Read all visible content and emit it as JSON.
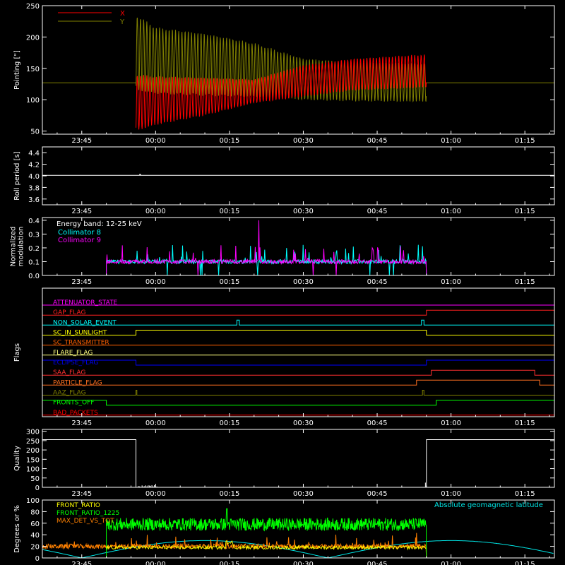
{
  "colors": {
    "background": "#000000",
    "axes": "#ffffff",
    "pointing_x": "#ff0000",
    "pointing_y": "#808000",
    "collimator_8": "#00ffff",
    "collimator_9": "#ff00ff",
    "front_ratio": "#ffff00",
    "front_ratio_1225": "#00ff00",
    "max_det_vs_tot": "#ff8000",
    "geomag": "#00e5e5"
  },
  "time_axis": {
    "tick_labels": [
      "23:45",
      "00:00",
      "00:15",
      "00:30",
      "00:45",
      "01:00",
      "01:15"
    ],
    "tick_minutes": [
      -15,
      0,
      15,
      30,
      45,
      60,
      75
    ],
    "range_minutes": [
      -23,
      81
    ]
  },
  "chart_data": [
    {
      "id": "pointing",
      "type": "line",
      "ylabel": "Pointing [\"]",
      "yticks": [
        50,
        100,
        150,
        200,
        250
      ],
      "ylim": [
        45,
        250
      ],
      "legend": [
        {
          "label": "X",
          "color": "#ff0000"
        },
        {
          "label": "Y",
          "color": "#808000"
        }
      ],
      "legend_placement": "top-left",
      "series": [
        {
          "name": "X",
          "baseline": 127,
          "data_start_min": -4,
          "data_end_min": 55,
          "envelope_time_min": [
            -4,
            0,
            10,
            20,
            30,
            40,
            50,
            55
          ],
          "envelope_low": [
            50,
            60,
            75,
            95,
            105,
            115,
            118,
            120
          ],
          "envelope_high": [
            140,
            137,
            135,
            132,
            155,
            165,
            170,
            172
          ]
        },
        {
          "name": "Y",
          "baseline": 127,
          "data_start_min": -4,
          "data_end_min": 55,
          "envelope_time_min": [
            -4,
            0,
            10,
            20,
            30,
            40,
            50,
            55
          ],
          "envelope_low": [
            115,
            110,
            107,
            105,
            100,
            98,
            97,
            97
          ],
          "envelope_high": [
            235,
            215,
            205,
            190,
            165,
            160,
            158,
            157
          ]
        }
      ]
    },
    {
      "id": "roll_period",
      "type": "line",
      "ylabel": "Roll period [s]",
      "yticks": [
        3.6,
        3.8,
        4.0,
        4.2,
        4.4
      ],
      "ytick_labels": [
        "3.6",
        "3.8",
        "4.0",
        "4.2",
        "4.4"
      ],
      "ylim": [
        3.5,
        4.5
      ],
      "series": [
        {
          "name": "",
          "value": 4.01
        }
      ]
    },
    {
      "id": "modulation",
      "type": "line",
      "ylabel": "Normalized modulation",
      "ylabel_lines": [
        "Normalized",
        "modulation"
      ],
      "yticks": [
        0.0,
        0.1,
        0.2,
        0.3,
        0.4
      ],
      "ytick_labels": [
        "0.0",
        "0.1",
        "0.2",
        "0.3",
        "0.4"
      ],
      "ylim": [
        0,
        0.42
      ],
      "annotation": "Energy band: 12-25 keV",
      "legend": [
        {
          "label": "Collimator 8",
          "color": "#00ffff"
        },
        {
          "label": "Collimator 9",
          "color": "#ff00ff"
        }
      ],
      "series": [
        {
          "name": "Collimator 8",
          "data_start_min": -10,
          "data_end_min": 55,
          "typical": 0.1,
          "spike_max": 0.23
        },
        {
          "name": "Collimator 9",
          "data_start_min": -10,
          "data_end_min": 55,
          "typical": 0.1,
          "spike_max": 0.4,
          "spike_at_min": 21
        }
      ]
    },
    {
      "id": "flags",
      "type": "line",
      "ylabel": "Flags",
      "series": [
        {
          "name": "ATTENUATOR_STATE",
          "color": "#ff00ff",
          "on": []
        },
        {
          "name": "GAP_FLAG",
          "color": "#ff2020",
          "on": [
            [
              55,
              81
            ]
          ]
        },
        {
          "name": "NON_SOLAR_EVENT",
          "color": "#00ffff",
          "on": [
            [
              16.5,
              17
            ],
            [
              54,
              54.5
            ]
          ]
        },
        {
          "name": "SC_IN_SUNLIGHT",
          "color": "#ffff00",
          "on": [
            [
              -4,
              55
            ]
          ]
        },
        {
          "name": "SC_TRANSMITTER",
          "color": "#ff6000",
          "on": []
        },
        {
          "name": "FLARE_FLAG",
          "color": "#ffff80",
          "on": []
        },
        {
          "name": "ECLIPSE_FLAG",
          "color": "#0000ff",
          "on": [
            [
              -23,
              -4
            ],
            [
              55,
              81
            ]
          ]
        },
        {
          "name": "SAA_FLAG",
          "color": "#ff3030",
          "on": [
            [
              56,
              77
            ]
          ]
        },
        {
          "name": "PARTICLE_FLAG",
          "color": "#ff7020",
          "on": [
            [
              53,
              78
            ]
          ]
        },
        {
          "name": "AAZ_FLAG",
          "color": "#808000",
          "on": [
            [
              -4,
              -3.8
            ],
            [
              54.2,
              54.5
            ]
          ]
        },
        {
          "name": "FRONTS_OFF",
          "color": "#00ff00",
          "on": [
            [
              -23,
              -10
            ],
            [
              57,
              81
            ]
          ]
        },
        {
          "name": "BAD_PACKETS",
          "color": "#ff0000",
          "on": []
        }
      ]
    },
    {
      "id": "quality",
      "type": "line",
      "ylabel": "Quality",
      "yticks": [
        0,
        50,
        100,
        150,
        200,
        250,
        300
      ],
      "ylim": [
        0,
        310
      ],
      "series": [
        {
          "name": "",
          "segments": [
            [
              -23,
              -4,
              255
            ],
            [
              -4,
              55,
              0
            ],
            [
              55,
              81,
              255
            ]
          ]
        }
      ]
    },
    {
      "id": "ratios",
      "type": "line",
      "ylabel": "Degrees or %",
      "yticks": [
        0,
        20,
        40,
        60,
        80,
        100
      ],
      "ylim": [
        0,
        100
      ],
      "legend": [
        {
          "label": "FRONT_RATIO",
          "color": "#ffff00"
        },
        {
          "label": "FRONT_RATIO_1225",
          "color": "#00ff00"
        },
        {
          "label": "MAX_DET_VS_TOT",
          "color": "#ff8000"
        }
      ],
      "right_label": "Absolute geomagnetic latitude",
      "series": [
        {
          "name": "FRONT_RATIO",
          "data_start_min": -10,
          "data_end_min": 55,
          "typical": 18
        },
        {
          "name": "FRONT_RATIO_1225",
          "data_start_min": -10,
          "data_end_min": 55,
          "typical": 58,
          "spike_max": 85,
          "spike_at_min": 14.5
        },
        {
          "name": "MAX_DET_VS_TOT",
          "data_start_min": -23,
          "data_end_min": 55,
          "typical": 20
        },
        {
          "name": "Absolute geomagnetic latitude",
          "type": "abs_sine",
          "amplitude": 30,
          "period_min": 50,
          "phase_min": -15
        }
      ]
    }
  ]
}
